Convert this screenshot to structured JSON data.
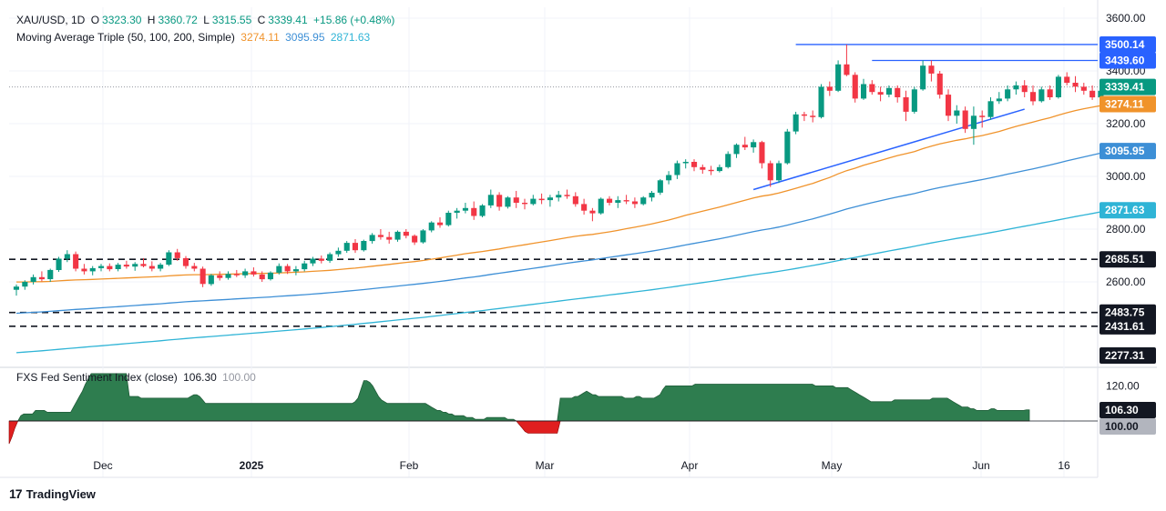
{
  "header": {
    "symbol": "XAU/USD, 1D",
    "open_label": "O",
    "open": "3323.30",
    "high_label": "H",
    "high": "3360.72",
    "low_label": "L",
    "low": "3315.55",
    "close_label": "C",
    "close": "3339.41",
    "change": "+15.86 (+0.48%)",
    "ma_title": "Moving Average Triple (50, 100, 200, Simple)",
    "ma50": "3274.11",
    "ma100": "3095.95",
    "ma200": "2871.63"
  },
  "indicator_header": {
    "title": "FXS Fed Sentiment Index (close)",
    "value": "106.30",
    "baseline": "100.00"
  },
  "brand": {
    "name": "TradingView",
    "icon": "tradingview-logo-icon"
  },
  "colors": {
    "up": "#089981",
    "down": "#f23645",
    "ma50": "#f0932b",
    "ma100": "#3d8fd6",
    "ma200": "#2fb4d6",
    "resistance": "#2962ff",
    "indicator_fill": "#2e7d4f",
    "indicator_negative": "#e01f1f"
  },
  "chart_data": [
    {
      "type": "candlestick",
      "title": "XAU/USD, 1D",
      "y_range": [
        2240,
        3640
      ],
      "y_ticks": [
        2600,
        2800,
        3000,
        3200,
        3400,
        3600
      ],
      "x_labels": [
        "Dec",
        "2025",
        "Feb",
        "Mar",
        "Apr",
        "May",
        "Jun",
        "16"
      ],
      "grid": true,
      "candles": [
        [
          2570,
          2590,
          2548,
          2582
        ],
        [
          2582,
          2606,
          2570,
          2600
        ],
        [
          2600,
          2628,
          2590,
          2618
        ],
        [
          2618,
          2640,
          2602,
          2610
        ],
        [
          2610,
          2650,
          2600,
          2645
        ],
        [
          2645,
          2695,
          2638,
          2688
        ],
        [
          2688,
          2720,
          2675,
          2705
        ],
        [
          2705,
          2715,
          2640,
          2650
        ],
        [
          2650,
          2668,
          2628,
          2640
        ],
        [
          2640,
          2660,
          2625,
          2652
        ],
        [
          2652,
          2668,
          2640,
          2660
        ],
        [
          2660,
          2670,
          2640,
          2648
        ],
        [
          2648,
          2672,
          2640,
          2665
        ],
        [
          2665,
          2680,
          2650,
          2658
        ],
        [
          2658,
          2675,
          2642,
          2668
        ],
        [
          2668,
          2690,
          2655,
          2660
        ],
        [
          2660,
          2678,
          2640,
          2650
        ],
        [
          2650,
          2672,
          2640,
          2665
        ],
        [
          2665,
          2720,
          2660,
          2712
        ],
        [
          2712,
          2725,
          2680,
          2690
        ],
        [
          2690,
          2698,
          2650,
          2660
        ],
        [
          2660,
          2672,
          2640,
          2650
        ],
        [
          2650,
          2658,
          2580,
          2592
        ],
        [
          2592,
          2630,
          2585,
          2625
        ],
        [
          2625,
          2640,
          2605,
          2615
        ],
        [
          2615,
          2640,
          2608,
          2630
        ],
        [
          2630,
          2645,
          2618,
          2625
        ],
        [
          2625,
          2650,
          2615,
          2640
        ],
        [
          2640,
          2655,
          2620,
          2628
        ],
        [
          2628,
          2640,
          2600,
          2610
        ],
        [
          2610,
          2640,
          2605,
          2635
        ],
        [
          2635,
          2670,
          2628,
          2660
        ],
        [
          2660,
          2668,
          2630,
          2640
        ],
        [
          2640,
          2660,
          2625,
          2648
        ],
        [
          2648,
          2680,
          2640,
          2670
        ],
        [
          2670,
          2695,
          2660,
          2688
        ],
        [
          2688,
          2700,
          2670,
          2680
        ],
        [
          2680,
          2712,
          2672,
          2705
        ],
        [
          2705,
          2730,
          2695,
          2718
        ],
        [
          2718,
          2755,
          2710,
          2748
        ],
        [
          2748,
          2762,
          2710,
          2720
        ],
        [
          2720,
          2760,
          2715,
          2755
        ],
        [
          2755,
          2785,
          2745,
          2778
        ],
        [
          2778,
          2800,
          2760,
          2770
        ],
        [
          2770,
          2790,
          2745,
          2760
        ],
        [
          2760,
          2795,
          2752,
          2790
        ],
        [
          2790,
          2800,
          2765,
          2775
        ],
        [
          2775,
          2780,
          2740,
          2750
        ],
        [
          2750,
          2800,
          2745,
          2795
        ],
        [
          2795,
          2830,
          2788,
          2825
        ],
        [
          2825,
          2845,
          2805,
          2815
        ],
        [
          2815,
          2870,
          2810,
          2862
        ],
        [
          2862,
          2880,
          2840,
          2870
        ],
        [
          2870,
          2900,
          2860,
          2880
        ],
        [
          2880,
          2905,
          2835,
          2850
        ],
        [
          2850,
          2895,
          2845,
          2890
        ],
        [
          2890,
          2950,
          2880,
          2930
        ],
        [
          2930,
          2940,
          2870,
          2885
        ],
        [
          2885,
          2925,
          2878,
          2920
        ],
        [
          2920,
          2945,
          2880,
          2900
        ],
        [
          2900,
          2915,
          2875,
          2895
        ],
        [
          2895,
          2930,
          2890,
          2915
        ],
        [
          2915,
          2935,
          2895,
          2910
        ],
        [
          2910,
          2930,
          2885,
          2920
        ],
        [
          2920,
          2945,
          2905,
          2930
        ],
        [
          2930,
          2950,
          2915,
          2925
        ],
        [
          2925,
          2940,
          2885,
          2895
        ],
        [
          2895,
          2915,
          2855,
          2870
        ],
        [
          2870,
          2880,
          2830,
          2860
        ],
        [
          2860,
          2920,
          2855,
          2915
        ],
        [
          2915,
          2925,
          2890,
          2900
        ],
        [
          2900,
          2925,
          2880,
          2910
        ],
        [
          2910,
          2930,
          2895,
          2905
        ],
        [
          2905,
          2920,
          2880,
          2895
        ],
        [
          2895,
          2925,
          2890,
          2920
        ],
        [
          2920,
          2945,
          2905,
          2938
        ],
        [
          2938,
          2990,
          2930,
          2985
        ],
        [
          2985,
          3020,
          2970,
          3005
        ],
        [
          3005,
          3060,
          2990,
          3050
        ],
        [
          3050,
          3065,
          3030,
          3055
        ],
        [
          3055,
          3065,
          3020,
          3035
        ],
        [
          3035,
          3045,
          3010,
          3025
        ],
        [
          3025,
          3040,
          3005,
          3020
        ],
        [
          3020,
          3045,
          3015,
          3035
        ],
        [
          3035,
          3095,
          3030,
          3085
        ],
        [
          3085,
          3125,
          3070,
          3120
        ],
        [
          3120,
          3150,
          3100,
          3110
        ],
        [
          3110,
          3140,
          3090,
          3130
        ],
        [
          3130,
          3135,
          3030,
          3050
        ],
        [
          3050,
          3060,
          2960,
          2985
        ],
        [
          2985,
          3060,
          2975,
          3050
        ],
        [
          3050,
          3180,
          3045,
          3170
        ],
        [
          3170,
          3245,
          3160,
          3235
        ],
        [
          3235,
          3245,
          3210,
          3230
        ],
        [
          3230,
          3250,
          3205,
          3225
        ],
        [
          3225,
          3350,
          3220,
          3340
        ],
        [
          3340,
          3360,
          3305,
          3325
        ],
        [
          3325,
          3440,
          3320,
          3425
        ],
        [
          3425,
          3500,
          3380,
          3385
        ],
        [
          3385,
          3395,
          3280,
          3295
        ],
        [
          3295,
          3370,
          3290,
          3350
        ],
        [
          3350,
          3365,
          3310,
          3320
        ],
        [
          3320,
          3340,
          3285,
          3310
        ],
        [
          3310,
          3345,
          3300,
          3335
        ],
        [
          3335,
          3345,
          3280,
          3300
        ],
        [
          3300,
          3325,
          3210,
          3245
        ],
        [
          3245,
          3340,
          3238,
          3330
        ],
        [
          3330,
          3440,
          3325,
          3420
        ],
        [
          3420,
          3440,
          3360,
          3390
        ],
        [
          3390,
          3400,
          3295,
          3310
        ],
        [
          3310,
          3330,
          3210,
          3230
        ],
        [
          3230,
          3270,
          3200,
          3250
        ],
        [
          3250,
          3265,
          3165,
          3180
        ],
        [
          3180,
          3265,
          3120,
          3230
        ],
        [
          3230,
          3250,
          3185,
          3225
        ],
        [
          3225,
          3300,
          3215,
          3285
        ],
        [
          3285,
          3320,
          3275,
          3295
        ],
        [
          3295,
          3345,
          3285,
          3330
        ],
        [
          3330,
          3360,
          3310,
          3345
        ],
        [
          3345,
          3365,
          3300,
          3320
        ],
        [
          3320,
          3345,
          3270,
          3285
        ],
        [
          3285,
          3340,
          3280,
          3330
        ],
        [
          3330,
          3345,
          3290,
          3300
        ],
        [
          3300,
          3385,
          3295,
          3378
        ],
        [
          3378,
          3395,
          3345,
          3355
        ],
        [
          3355,
          3380,
          3320,
          3340
        ],
        [
          3340,
          3355,
          3310,
          3325
        ],
        [
          3325,
          3345,
          3290,
          3300
        ],
        [
          3300,
          3350,
          3295,
          3325
        ],
        [
          3323.3,
          3360.72,
          3315.55,
          3339.41
        ]
      ],
      "series": [
        {
          "name": "SMA 50",
          "last": 3274.11
        },
        {
          "name": "SMA 100",
          "last": 3095.95
        },
        {
          "name": "SMA 200",
          "last": 2871.63
        }
      ],
      "price_labels": [
        {
          "value": 3500.14,
          "style": "resistance"
        },
        {
          "value": 3439.6,
          "style": "resistance"
        },
        {
          "value": 3339.41,
          "style": "last"
        },
        {
          "value": 3274.11,
          "style": "ma50"
        },
        {
          "value": 3095.95,
          "style": "ma100"
        },
        {
          "value": 2871.63,
          "style": "ma200"
        },
        {
          "value": 2685.51,
          "style": "level"
        },
        {
          "value": 2483.75,
          "style": "level"
        },
        {
          "value": 2431.61,
          "style": "level"
        },
        {
          "value": 2277.31,
          "style": "level"
        }
      ],
      "annotations": {
        "horizontal_levels": [
          2685.51,
          2483.75,
          2431.61
        ],
        "resistance_lines": [
          3500.14,
          3439.6
        ],
        "trendline": {
          "from": 2950,
          "to": 3255
        }
      }
    },
    {
      "type": "area",
      "title": "FXS Fed Sentiment Index (close)",
      "baseline": 100,
      "y_ticks": [
        120
      ],
      "price_labels": [
        {
          "value": 106.3,
          "style": "indicator"
        },
        {
          "value": 100.0,
          "style": "baseline"
        }
      ],
      "values": [
        87,
        91,
        96,
        100,
        103,
        104,
        104,
        104,
        104,
        106,
        106,
        106,
        106,
        105,
        105,
        105,
        105,
        105,
        105,
        105,
        105,
        105,
        108,
        111,
        114,
        117,
        121,
        124,
        127,
        127,
        127,
        127,
        127,
        127,
        127,
        127,
        127,
        127,
        127,
        127,
        127,
        114,
        114,
        114,
        114,
        113,
        113,
        113,
        113,
        113,
        113,
        113,
        113,
        113,
        113,
        113,
        113,
        113,
        113,
        113,
        113,
        113,
        114,
        115,
        115,
        114,
        112,
        110,
        110,
        110,
        110,
        110,
        110,
        110,
        110,
        110,
        110,
        110,
        110,
        110,
        110,
        110,
        110,
        110,
        110,
        110,
        110,
        110,
        110,
        110,
        110,
        110,
        110,
        110,
        110,
        110,
        110,
        110,
        110,
        110,
        110,
        110,
        110,
        110,
        110,
        110,
        110,
        110,
        110,
        110,
        110,
        110,
        110,
        110,
        110,
        110,
        110,
        110,
        111,
        113,
        118,
        123,
        123,
        122,
        120,
        117,
        114,
        112,
        111,
        110,
        110,
        110,
        110,
        110,
        110,
        110,
        110,
        110,
        110,
        110,
        110,
        110,
        110,
        109,
        108,
        107,
        106,
        106,
        105,
        105,
        104,
        104,
        103,
        103,
        103,
        103,
        102,
        102,
        102,
        101,
        101,
        101,
        101,
        102,
        102,
        102,
        102,
        102,
        102,
        102,
        101,
        101,
        101,
        100,
        98,
        96,
        94,
        93,
        93,
        93,
        93,
        93,
        93,
        93,
        93,
        93,
        93,
        93,
        113,
        113,
        113,
        113,
        113,
        114,
        114,
        115,
        116,
        117,
        116,
        115,
        115,
        114,
        114,
        114,
        114,
        114,
        114,
        114,
        114,
        114,
        113,
        113,
        113,
        113,
        114,
        114,
        113,
        113,
        113,
        113,
        113,
        114,
        115,
        118,
        120,
        120,
        120,
        120,
        120,
        120,
        120,
        120,
        120,
        120,
        121,
        121,
        121,
        121,
        121,
        121,
        121,
        121,
        121,
        121,
        121,
        121,
        121,
        121,
        121,
        121,
        121,
        121,
        121,
        121,
        121,
        121,
        121,
        121,
        121,
        121,
        121,
        121,
        121,
        121,
        121,
        121,
        121,
        121,
        121,
        121,
        121,
        121,
        121,
        121,
        121,
        120,
        120,
        120,
        120,
        120,
        120,
        120,
        119,
        119,
        119,
        119,
        119,
        118,
        117,
        116,
        115,
        114,
        113,
        112,
        111,
        111,
        111,
        111,
        111,
        111,
        111,
        111,
        112,
        112,
        112,
        112,
        112,
        112,
        112,
        112,
        112,
        112,
        112,
        112,
        112,
        113,
        113,
        113,
        113,
        113,
        113,
        112,
        111,
        110,
        109,
        108,
        108,
        108,
        107,
        107,
        106,
        106,
        106,
        106,
        106,
        107,
        107,
        106,
        106,
        106,
        106,
        106,
        106,
        106,
        106,
        106,
        106,
        106.3,
        106.3
      ]
    }
  ]
}
